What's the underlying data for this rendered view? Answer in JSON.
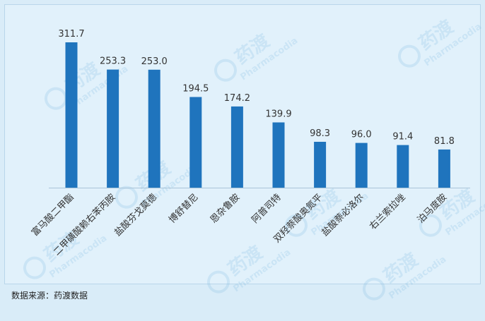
{
  "chart_data": {
    "type": "bar",
    "categories": [
      "富马酸二甲酯",
      "二甲磺酸赖右苯丙胺",
      "盐酸芬戈莫德",
      "博舒替尼",
      "恩杂鲁胺",
      "阿普司特",
      "双羟萘酸奥氮平",
      "盐酸萘必洛尔",
      "右兰索拉唑",
      "泊马度胺"
    ],
    "values": [
      311.7,
      253.3,
      253.0,
      194.5,
      174.2,
      139.9,
      98.3,
      96.0,
      91.4,
      81.8
    ],
    "value_labels": [
      "311.7",
      "253.3",
      "253.0",
      "194.5",
      "174.2",
      "139.9",
      "98.3",
      "96.0",
      "91.4",
      "81.8"
    ],
    "title": "",
    "xlabel": "",
    "ylabel": "",
    "ylim": [
      0,
      311.7
    ],
    "grid": false,
    "bar_color": "#1f74bd"
  },
  "footer": {
    "source": "数据来源：药渡数据"
  },
  "watermark": {
    "brand_cn": "药渡",
    "brand_en": "Pharmacodia"
  },
  "colors": {
    "background": "#e1f1fb",
    "axis": "#a9c4d8",
    "label": "#333333"
  }
}
